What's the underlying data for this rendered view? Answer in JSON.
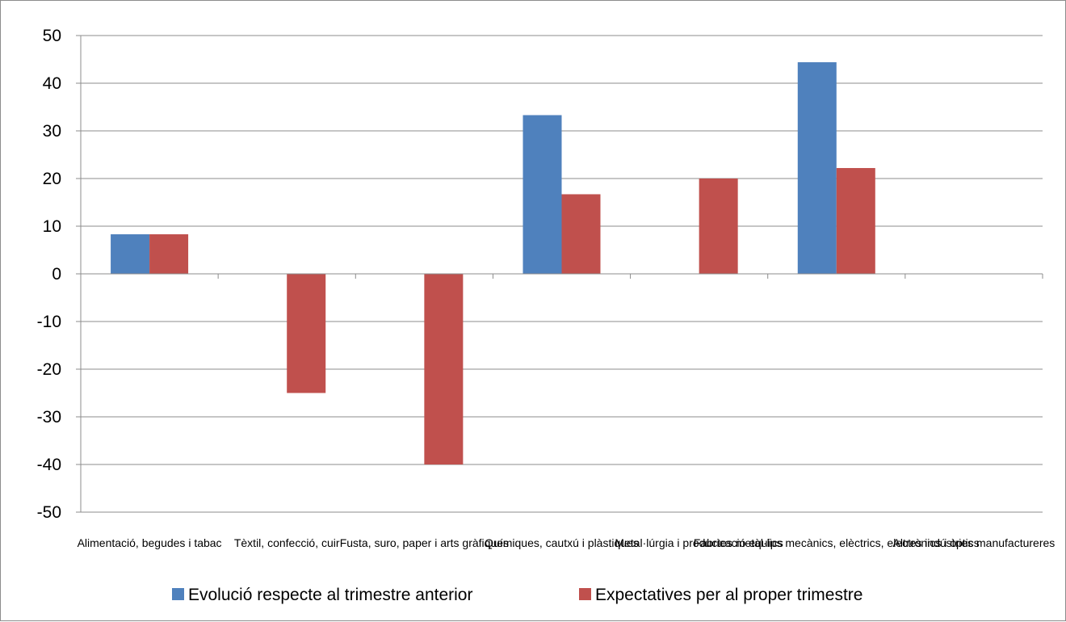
{
  "chart_data": {
    "type": "bar",
    "title": "",
    "xlabel": "",
    "ylabel": "",
    "ylim": [
      -50,
      50
    ],
    "yticks": [
      50,
      40,
      30,
      20,
      10,
      0,
      -10,
      -20,
      -30,
      -40,
      -50
    ],
    "grid": true,
    "legend_position": "bottom",
    "categories": [
      "Alimentació, begudes i tabac",
      "Tèxtil, confecció, cuir",
      "Fusta, suro, paper i arts gràfiques",
      "Químiques, cautxú i plàstiques",
      "Metal·lúrgia i productes metàl·lics",
      "Fabricació equips mecànics, elèctrics, electrònics i òptics",
      "Altres indústries manufactureres"
    ],
    "series": [
      {
        "name": "Evolució respecte al trimestre anterior",
        "color": "#4f81bd",
        "values": [
          8.3,
          0,
          0,
          33.3,
          0,
          44.4,
          0
        ]
      },
      {
        "name": "Expectatives per al proper trimestre",
        "color": "#c0504d",
        "values": [
          8.3,
          -25,
          -40,
          16.7,
          20,
          22.2,
          0
        ]
      }
    ]
  }
}
